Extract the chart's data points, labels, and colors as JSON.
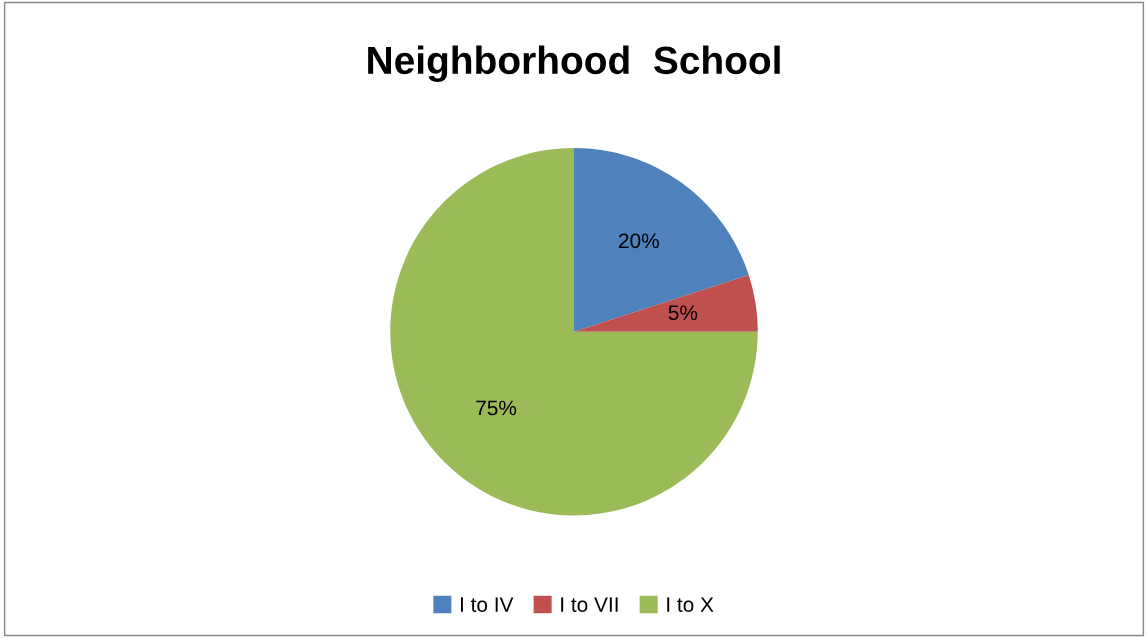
{
  "chart_data": {
    "type": "pie",
    "title": "Neighborhood  School",
    "categories": [
      "I to IV",
      "I to VII",
      "I to X"
    ],
    "values": [
      20,
      5,
      75
    ],
    "colors": [
      "#4f81bd",
      "#c0504d",
      "#9bbb59"
    ],
    "value_labels": [
      "20%",
      "5%",
      "75%"
    ],
    "legend": "bottom"
  }
}
